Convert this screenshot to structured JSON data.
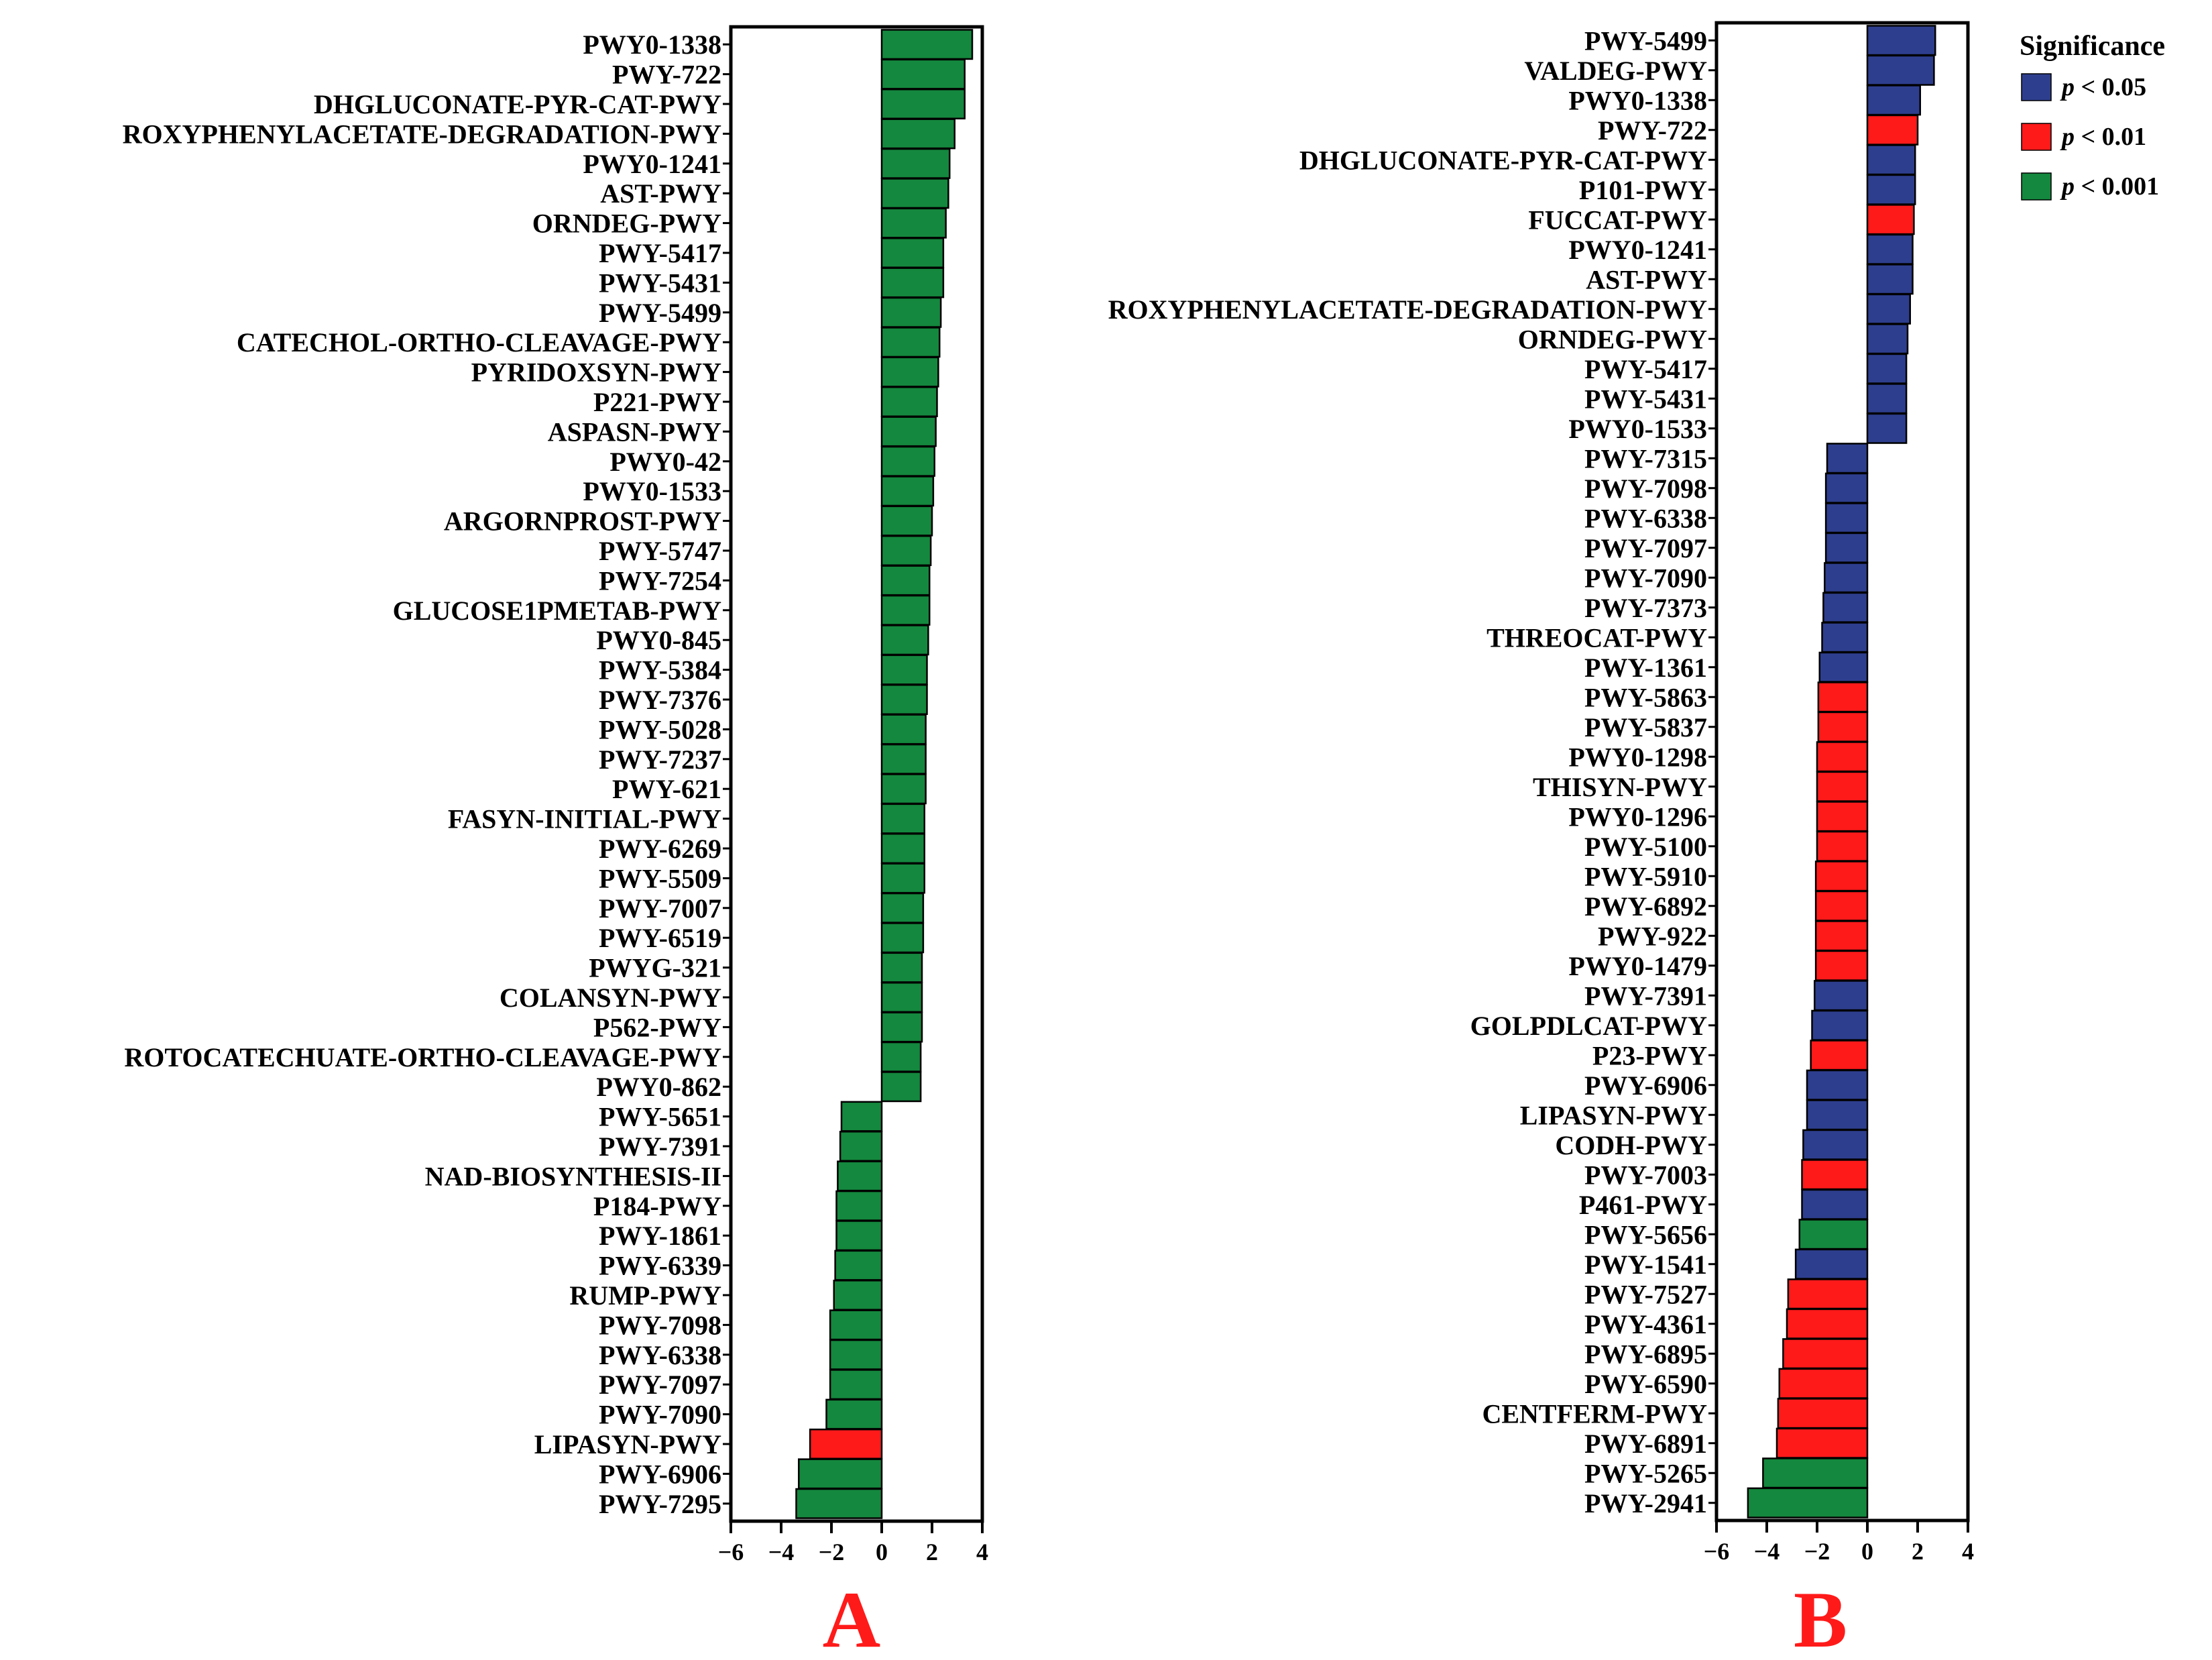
{
  "colors": {
    "p005": "#2E3E8E",
    "p001": "#FF1A1A",
    "p0001": "#14883E",
    "panel_letter": "#FF1A1A"
  },
  "legend": {
    "title": "Significance",
    "items": [
      {
        "key": "p005",
        "label": "p < 0.05"
      },
      {
        "key": "p001",
        "label": "p < 0.01"
      },
      {
        "key": "p0001",
        "label": "p < 0.001"
      }
    ]
  },
  "chart_data": [
    {
      "type": "bar",
      "orientation": "horizontal",
      "panel_label": "A",
      "xlim": [
        -6,
        4
      ],
      "xticks": [
        -6,
        -4,
        -2,
        0,
        2,
        4
      ],
      "xtick_labels": [
        "−6",
        "−4",
        "−2",
        "0",
        "2",
        "4"
      ],
      "categories": [
        "PWY0-1338",
        "PWY-722",
        "DHGLUCONATE-PYR-CAT-PWY",
        "ROXYPHENYLACETATE-DEGRADATION-PWY",
        "PWY0-1241",
        "AST-PWY",
        "ORNDEG-PWY",
        "PWY-5417",
        "PWY-5431",
        "PWY-5499",
        "CATECHOL-ORTHO-CLEAVAGE-PWY",
        "PYRIDOXSYN-PWY",
        "P221-PWY",
        "ASPASN-PWY",
        "PWY0-42",
        "PWY0-1533",
        "ARGORNPROST-PWY",
        "PWY-5747",
        "PWY-7254",
        "GLUCOSE1PMETAB-PWY",
        "PWY0-845",
        "PWY-5384",
        "PWY-7376",
        "PWY-5028",
        "PWY-7237",
        "PWY-621",
        "FASYN-INITIAL-PWY",
        "PWY-6269",
        "PWY-5509",
        "PWY-7007",
        "PWY-6519",
        "PWYG-321",
        "COLANSYN-PWY",
        "P562-PWY",
        "ROTOCATECHUATE-ORTHO-CLEAVAGE-PWY",
        "PWY0-862",
        "PWY-5651",
        "PWY-7391",
        "NAD-BIOSYNTHESIS-II",
        "P184-PWY",
        "PWY-1861",
        "PWY-6339",
        "RUMP-PWY",
        "PWY-7098",
        "PWY-6338",
        "PWY-7097",
        "PWY-7090",
        "LIPASYN-PWY",
        "PWY-6906",
        "PWY-7295"
      ],
      "values": [
        3.6,
        3.3,
        3.3,
        2.9,
        2.7,
        2.65,
        2.55,
        2.45,
        2.45,
        2.35,
        2.3,
        2.25,
        2.2,
        2.15,
        2.1,
        2.05,
        2.0,
        1.95,
        1.9,
        1.9,
        1.85,
        1.8,
        1.8,
        1.75,
        1.75,
        1.75,
        1.7,
        1.7,
        1.7,
        1.65,
        1.65,
        1.6,
        1.6,
        1.6,
        1.55,
        1.55,
        -1.6,
        -1.65,
        -1.75,
        -1.8,
        -1.8,
        -1.85,
        -1.9,
        -2.05,
        -2.05,
        -2.05,
        -2.2,
        -2.85,
        -3.3,
        -3.4
      ],
      "significance": [
        "p0001",
        "p0001",
        "p0001",
        "p0001",
        "p0001",
        "p0001",
        "p0001",
        "p0001",
        "p0001",
        "p0001",
        "p0001",
        "p0001",
        "p0001",
        "p0001",
        "p0001",
        "p0001",
        "p0001",
        "p0001",
        "p0001",
        "p0001",
        "p0001",
        "p0001",
        "p0001",
        "p0001",
        "p0001",
        "p0001",
        "p0001",
        "p0001",
        "p0001",
        "p0001",
        "p0001",
        "p0001",
        "p0001",
        "p0001",
        "p0001",
        "p0001",
        "p0001",
        "p0001",
        "p0001",
        "p0001",
        "p0001",
        "p0001",
        "p0001",
        "p0001",
        "p0001",
        "p0001",
        "p0001",
        "p001",
        "p0001",
        "p0001"
      ]
    },
    {
      "type": "bar",
      "orientation": "horizontal",
      "panel_label": "B",
      "xlim": [
        -6,
        4
      ],
      "xticks": [
        -6,
        -4,
        -2,
        0,
        2,
        4
      ],
      "xtick_labels": [
        "−6",
        "−4",
        "−2",
        "0",
        "2",
        "4"
      ],
      "categories": [
        "PWY-5499",
        "VALDEG-PWY",
        "PWY0-1338",
        "PWY-722",
        "DHGLUCONATE-PYR-CAT-PWY",
        "P101-PWY",
        "FUCCAT-PWY",
        "PWY0-1241",
        "AST-PWY",
        "ROXYPHENYLACETATE-DEGRADATION-PWY",
        "ORNDEG-PWY",
        "PWY-5417",
        "PWY-5431",
        "PWY0-1533",
        "PWY-7315",
        "PWY-7098",
        "PWY-6338",
        "PWY-7097",
        "PWY-7090",
        "PWY-7373",
        "THREOCAT-PWY",
        "PWY-1361",
        "PWY-5863",
        "PWY-5837",
        "PWY0-1298",
        "THISYN-PWY",
        "PWY0-1296",
        "PWY-5100",
        "PWY-5910",
        "PWY-6892",
        "PWY-922",
        "PWY0-1479",
        "PWY-7391",
        "GOLPDLCAT-PWY",
        "P23-PWY",
        "PWY-6906",
        "LIPASYN-PWY",
        "CODH-PWY",
        "PWY-7003",
        "P461-PWY",
        "PWY-5656",
        "PWY-1541",
        "PWY-7527",
        "PWY-4361",
        "PWY-6895",
        "PWY-6590",
        "CENTFERM-PWY",
        "PWY-6891",
        "PWY-5265",
        "PWY-2941"
      ],
      "values": [
        2.7,
        2.65,
        2.1,
        2.0,
        1.9,
        1.9,
        1.85,
        1.8,
        1.8,
        1.7,
        1.6,
        1.55,
        1.55,
        1.55,
        -1.6,
        -1.65,
        -1.65,
        -1.65,
        -1.7,
        -1.75,
        -1.8,
        -1.9,
        -1.95,
        -1.95,
        -2.0,
        -2.0,
        -2.0,
        -2.0,
        -2.05,
        -2.05,
        -2.05,
        -2.05,
        -2.1,
        -2.2,
        -2.25,
        -2.4,
        -2.4,
        -2.55,
        -2.6,
        -2.6,
        -2.7,
        -2.85,
        -3.15,
        -3.2,
        -3.35,
        -3.5,
        -3.55,
        -3.6,
        -4.15,
        -4.75
      ],
      "significance": [
        "p005",
        "p005",
        "p005",
        "p001",
        "p005",
        "p005",
        "p001",
        "p005",
        "p005",
        "p005",
        "p005",
        "p005",
        "p005",
        "p005",
        "p005",
        "p005",
        "p005",
        "p005",
        "p005",
        "p005",
        "p005",
        "p005",
        "p001",
        "p001",
        "p001",
        "p001",
        "p001",
        "p001",
        "p001",
        "p001",
        "p001",
        "p001",
        "p005",
        "p005",
        "p001",
        "p005",
        "p005",
        "p005",
        "p001",
        "p005",
        "p0001",
        "p005",
        "p001",
        "p001",
        "p001",
        "p001",
        "p001",
        "p001",
        "p0001",
        "p0001"
      ]
    }
  ]
}
